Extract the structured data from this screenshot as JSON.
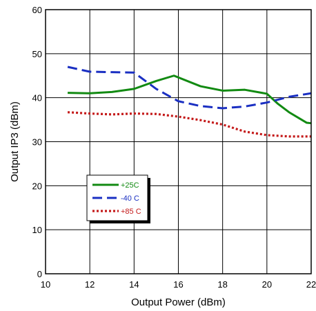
{
  "chart_data": {
    "type": "line",
    "title": "",
    "xlabel": "Output Power (dBm)",
    "ylabel": "Output IP3 (dBm)",
    "xlim": [
      10,
      22
    ],
    "ylim": [
      0,
      60
    ],
    "xticks": [
      10,
      12,
      14,
      16,
      18,
      20,
      22
    ],
    "yticks": [
      0,
      10,
      20,
      30,
      40,
      50,
      60
    ],
    "grid": true,
    "legend_position": "lower-left",
    "series": [
      {
        "name": "+25C",
        "color": "#128a12",
        "dash": "solid",
        "x": [
          11,
          12,
          13,
          14,
          15,
          15.8,
          17,
          18,
          19,
          20,
          20.5,
          21,
          21.5,
          21.8,
          22
        ],
        "y": [
          41.1,
          41.0,
          41.3,
          42.0,
          43.8,
          45.0,
          42.6,
          41.6,
          41.8,
          40.9,
          38.6,
          36.7,
          35.2,
          34.3,
          34.2
        ]
      },
      {
        "name": "-40 C",
        "color": "#1a2fc2",
        "dash": "long",
        "x": [
          11,
          12,
          13,
          14,
          15,
          16,
          17,
          18,
          19,
          20,
          21,
          22
        ],
        "y": [
          47.0,
          45.9,
          45.8,
          45.7,
          42.0,
          39.2,
          38.1,
          37.6,
          38.0,
          38.9,
          40.2,
          41.0
        ]
      },
      {
        "name": "+85 C",
        "color": "#c41a1a",
        "dash": "dotted",
        "x": [
          11,
          12,
          13,
          14,
          15,
          16,
          17,
          18,
          19,
          20,
          21,
          22
        ],
        "y": [
          36.7,
          36.4,
          36.2,
          36.4,
          36.3,
          35.7,
          34.9,
          33.9,
          32.3,
          31.5,
          31.2,
          31.2
        ]
      }
    ]
  }
}
